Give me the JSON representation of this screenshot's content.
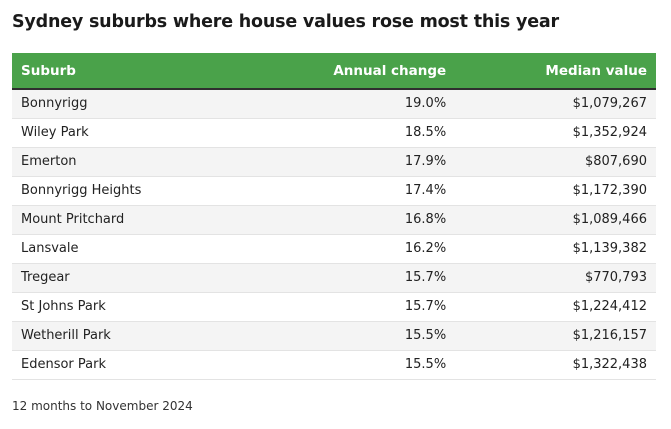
{
  "title": "Sydney suburbs where house values rose most this year",
  "columns": {
    "suburb": "Suburb",
    "change": "Annual change",
    "value": "Median value"
  },
  "chart_data": {
    "type": "table",
    "title": "Sydney suburbs where house values rose most this year",
    "columns": [
      "Suburb",
      "Annual change",
      "Median value"
    ],
    "rows": [
      {
        "suburb": "Bonnyrigg",
        "change": "19.0%",
        "value": "$1,079,267"
      },
      {
        "suburb": "Wiley Park",
        "change": "18.5%",
        "value": "$1,352,924"
      },
      {
        "suburb": "Emerton",
        "change": "17.9%",
        "value": "$807,690"
      },
      {
        "suburb": "Bonnyrigg Heights",
        "change": "17.4%",
        "value": "$1,172,390"
      },
      {
        "suburb": "Mount Pritchard",
        "change": "16.8%",
        "value": "$1,089,466"
      },
      {
        "suburb": "Lansvale",
        "change": "16.2%",
        "value": "$1,139,382"
      },
      {
        "suburb": "Tregear",
        "change": "15.7%",
        "value": "$770,793"
      },
      {
        "suburb": "St Johns Park",
        "change": "15.7%",
        "value": "$1,224,412"
      },
      {
        "suburb": "Wetherill Park",
        "change": "15.5%",
        "value": "$1,216,157"
      },
      {
        "suburb": "Edensor Park",
        "change": "15.5%",
        "value": "$1,322,438"
      }
    ]
  },
  "note": "12 months to November 2024",
  "colors": {
    "header_bg": "#4aa24a",
    "header_text": "#ffffff",
    "stripe": "#f4f4f4"
  }
}
